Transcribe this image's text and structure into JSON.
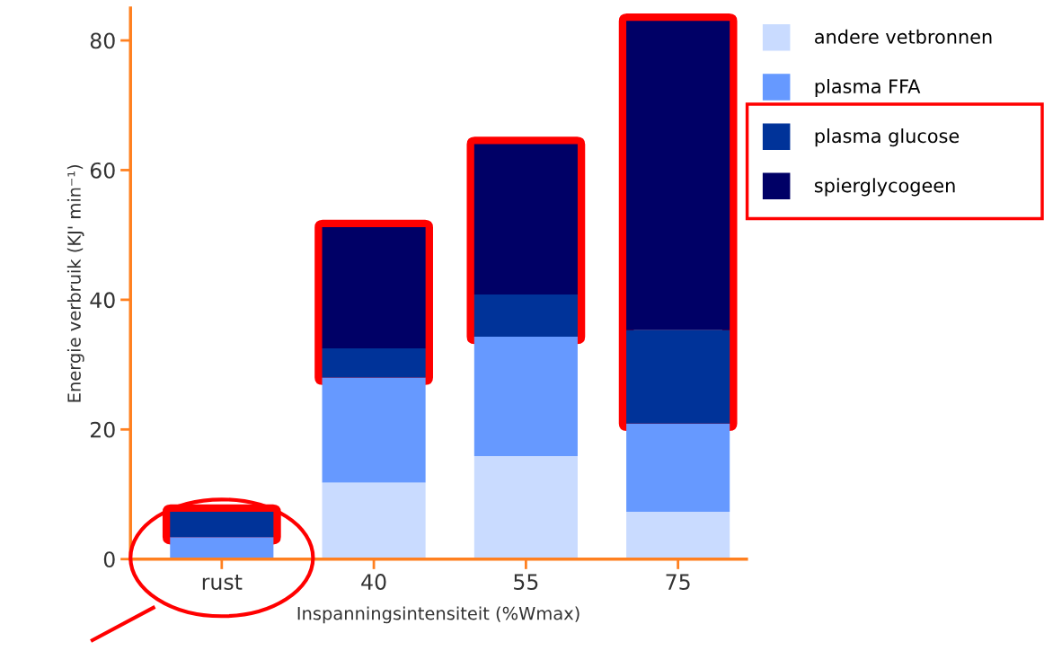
{
  "chart_data": {
    "type": "bar",
    "stacked": true,
    "xlabel": "Inspanningsintensiteit (%Wmax)",
    "ylabel": "Energie verbruik (KJ' min⁻¹)",
    "categories": [
      "rust",
      "40",
      "55",
      "75"
    ],
    "series": [
      {
        "name": "andere vetbronnen",
        "color": "#c9dbff",
        "values": [
          0,
          11.8,
          15.9,
          7.3
        ]
      },
      {
        "name": "plasma FFA",
        "color": "#6699ff",
        "values": [
          3.4,
          16.2,
          18.4,
          13.6
        ]
      },
      {
        "name": "plasma glucose",
        "color": "#003399",
        "values": [
          3.9,
          4.5,
          6.5,
          14.4
        ]
      },
      {
        "name": "spierglycogeen",
        "color": "#000066",
        "values": [
          0,
          18.7,
          23.2,
          47.7
        ]
      }
    ],
    "ylim": [
      0,
      85
    ],
    "yticks": [
      0,
      20,
      40,
      60,
      80
    ],
    "grid": false,
    "legend": "right"
  }
}
